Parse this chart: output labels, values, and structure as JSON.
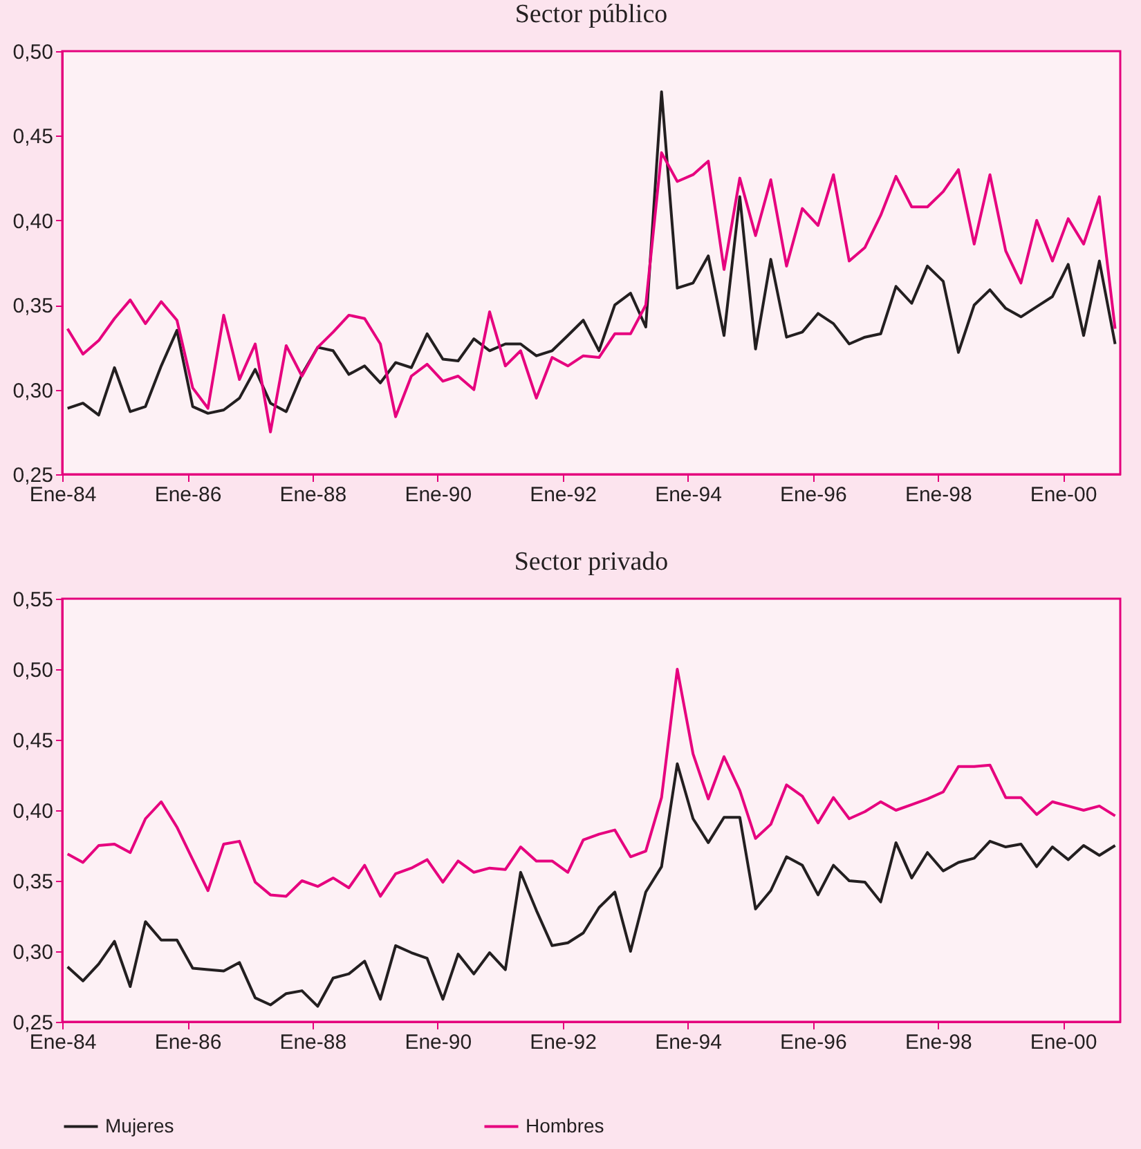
{
  "chart_data": [
    {
      "type": "line",
      "title": "Sector público",
      "x": [
        "1984-02",
        "1984-05",
        "1984-08",
        "1984-11",
        "1985-02",
        "1985-05",
        "1985-08",
        "1985-11",
        "1986-02",
        "1986-05",
        "1986-08",
        "1986-11",
        "1987-02",
        "1987-05",
        "1987-08",
        "1987-11",
        "1988-02",
        "1988-05",
        "1988-08",
        "1988-11",
        "1989-02",
        "1989-05",
        "1989-08",
        "1989-11",
        "1990-02",
        "1990-05",
        "1990-08",
        "1990-11",
        "1991-02",
        "1991-05",
        "1991-08",
        "1991-11",
        "1992-02",
        "1992-05",
        "1992-08",
        "1992-11",
        "1993-02",
        "1993-05",
        "1993-08",
        "1993-11",
        "1994-02",
        "1994-05",
        "1994-08",
        "1994-11",
        "1995-02",
        "1995-05",
        "1995-08",
        "1995-11",
        "1996-02",
        "1996-05",
        "1996-08",
        "1996-11",
        "1997-02",
        "1997-05",
        "1997-08",
        "1997-11",
        "1998-02",
        "1998-05",
        "1998-08",
        "1998-11",
        "1999-02",
        "1999-05",
        "1999-08",
        "1999-11",
        "2000-02",
        "2000-05",
        "2000-08",
        "2000-11"
      ],
      "series": [
        {
          "color": "#231f20",
          "values": [
            0.289,
            0.292,
            0.285,
            0.313,
            0.287,
            0.29,
            0.314,
            0.335,
            0.29,
            0.286,
            0.288,
            0.295,
            0.312,
            0.292,
            0.287,
            0.309,
            0.325,
            0.323,
            0.309,
            0.314,
            0.304,
            0.316,
            0.313,
            0.333,
            0.318,
            0.317,
            0.33,
            0.323,
            0.327,
            0.327,
            0.32,
            0.323,
            0.332,
            0.341,
            0.323,
            0.35,
            0.357,
            0.337,
            0.476,
            0.36,
            0.363,
            0.379,
            0.332,
            0.414,
            0.324,
            0.377,
            0.331,
            0.334,
            0.345,
            0.339,
            0.327,
            0.331,
            0.333,
            0.361,
            0.351,
            0.373,
            0.364,
            0.322,
            0.35,
            0.359,
            0.348,
            0.343,
            0.349,
            0.355,
            0.374,
            0.332,
            0.376,
            0.327
          ]
        },
        {
          "color": "#e6007e",
          "values": [
            0.336,
            0.321,
            0.329,
            0.342,
            0.353,
            0.339,
            0.352,
            0.341,
            0.301,
            0.289,
            0.344,
            0.306,
            0.327,
            0.275,
            0.326,
            0.308,
            0.325,
            0.334,
            0.344,
            0.342,
            0.327,
            0.284,
            0.308,
            0.315,
            0.305,
            0.308,
            0.3,
            0.346,
            0.314,
            0.323,
            0.295,
            0.319,
            0.314,
            0.32,
            0.319,
            0.333,
            0.333,
            0.35,
            0.44,
            0.423,
            0.427,
            0.435,
            0.371,
            0.425,
            0.391,
            0.424,
            0.373,
            0.407,
            0.397,
            0.427,
            0.376,
            0.384,
            0.403,
            0.426,
            0.408,
            0.408,
            0.417,
            0.43,
            0.386,
            0.427,
            0.382,
            0.363,
            0.4,
            0.376,
            0.401,
            0.386,
            0.414,
            0.336
          ]
        }
      ],
      "xlim": [
        "1984-01",
        "2000-12"
      ],
      "xticks": [
        {
          "value": "1984-01",
          "label": "Ene-84"
        },
        {
          "value": "1986-01",
          "label": "Ene-86"
        },
        {
          "value": "1988-01",
          "label": "Ene-88"
        },
        {
          "value": "1990-01",
          "label": "Ene-90"
        },
        {
          "value": "1992-01",
          "label": "Ene-92"
        },
        {
          "value": "1994-01",
          "label": "Ene-94"
        },
        {
          "value": "1996-01",
          "label": "Ene-96"
        },
        {
          "value": "1998-01",
          "label": "Ene-98"
        },
        {
          "value": "2000-01",
          "label": "Ene-00"
        }
      ],
      "ylim": [
        0.25,
        0.5
      ],
      "yticks": [
        {
          "value": 0.25,
          "label": "0,25"
        },
        {
          "value": 0.3,
          "label": "0,30"
        },
        {
          "value": 0.35,
          "label": "0,35"
        },
        {
          "value": 0.4,
          "label": "0,40"
        },
        {
          "value": 0.45,
          "label": "0,45"
        },
        {
          "value": 0.5,
          "label": "0,50"
        }
      ],
      "grid": false,
      "legend": false,
      "marker": "none",
      "line_style": "solid"
    },
    {
      "type": "line",
      "title": "Sector privado",
      "x": [
        "1984-02",
        "1984-05",
        "1984-08",
        "1984-11",
        "1985-02",
        "1985-05",
        "1985-08",
        "1985-11",
        "1986-02",
        "1986-05",
        "1986-08",
        "1986-11",
        "1987-02",
        "1987-05",
        "1987-08",
        "1987-11",
        "1988-02",
        "1988-05",
        "1988-08",
        "1988-11",
        "1989-02",
        "1989-05",
        "1989-08",
        "1989-11",
        "1990-02",
        "1990-05",
        "1990-08",
        "1990-11",
        "1991-02",
        "1991-05",
        "1991-08",
        "1991-11",
        "1992-02",
        "1992-05",
        "1992-08",
        "1992-11",
        "1993-02",
        "1993-05",
        "1993-08",
        "1993-11",
        "1994-02",
        "1994-05",
        "1994-08",
        "1994-11",
        "1995-02",
        "1995-05",
        "1995-08",
        "1995-11",
        "1996-02",
        "1996-05",
        "1996-08",
        "1996-11",
        "1997-02",
        "1997-05",
        "1997-08",
        "1997-11",
        "1998-02",
        "1998-05",
        "1998-08",
        "1998-11",
        "1999-02",
        "1999-05",
        "1999-08",
        "1999-11",
        "2000-02",
        "2000-05",
        "2000-08",
        "2000-11"
      ],
      "series": [
        {
          "name": "Mujeres",
          "color": "#231f20",
          "values": [
            0.289,
            0.279,
            0.291,
            0.307,
            0.275,
            0.321,
            0.308,
            0.308,
            0.288,
            0.287,
            0.286,
            0.292,
            0.267,
            0.262,
            0.27,
            0.272,
            0.261,
            0.281,
            0.284,
            0.293,
            0.266,
            0.304,
            0.299,
            0.295,
            0.266,
            0.298,
            0.284,
            0.299,
            0.287,
            0.356,
            0.329,
            0.304,
            0.306,
            0.313,
            0.331,
            0.342,
            0.3,
            0.342,
            0.36,
            0.433,
            0.394,
            0.377,
            0.395,
            0.395,
            0.33,
            0.343,
            0.367,
            0.361,
            0.34,
            0.361,
            0.35,
            0.349,
            0.335,
            0.377,
            0.352,
            0.37,
            0.357,
            0.363,
            0.366,
            0.378,
            0.374,
            0.376,
            0.36,
            0.374,
            0.365,
            0.375,
            0.368,
            0.375
          ]
        },
        {
          "name": "Hombres",
          "color": "#e6007e",
          "values": [
            0.369,
            0.363,
            0.375,
            0.376,
            0.37,
            0.394,
            0.406,
            0.388,
            0.365,
            0.343,
            0.376,
            0.378,
            0.349,
            0.34,
            0.339,
            0.35,
            0.346,
            0.352,
            0.345,
            0.361,
            0.339,
            0.355,
            0.359,
            0.365,
            0.349,
            0.364,
            0.356,
            0.359,
            0.358,
            0.374,
            0.364,
            0.364,
            0.356,
            0.379,
            0.383,
            0.386,
            0.367,
            0.371,
            0.409,
            0.5,
            0.44,
            0.408,
            0.438,
            0.414,
            0.38,
            0.39,
            0.418,
            0.41,
            0.391,
            0.409,
            0.394,
            0.399,
            0.406,
            0.4,
            0.404,
            0.408,
            0.413,
            0.431,
            0.431,
            0.432,
            0.409,
            0.409,
            0.397,
            0.406,
            0.403,
            0.4,
            0.403,
            0.396
          ]
        }
      ],
      "xlim": [
        "1984-01",
        "2000-12"
      ],
      "xticks": [
        {
          "value": "1984-01",
          "label": "Ene-84"
        },
        {
          "value": "1986-01",
          "label": "Ene-86"
        },
        {
          "value": "1988-01",
          "label": "Ene-88"
        },
        {
          "value": "1990-01",
          "label": "Ene-90"
        },
        {
          "value": "1992-01",
          "label": "Ene-92"
        },
        {
          "value": "1994-01",
          "label": "Ene-94"
        },
        {
          "value": "1996-01",
          "label": "Ene-96"
        },
        {
          "value": "1998-01",
          "label": "Ene-98"
        },
        {
          "value": "2000-01",
          "label": "Ene-00"
        }
      ],
      "ylim": [
        0.25,
        0.55
      ],
      "yticks": [
        {
          "value": 0.25,
          "label": "0,25"
        },
        {
          "value": 0.3,
          "label": "0,30"
        },
        {
          "value": 0.35,
          "label": "0,35"
        },
        {
          "value": 0.4,
          "label": "0,40"
        },
        {
          "value": 0.45,
          "label": "0,45"
        },
        {
          "value": 0.5,
          "label": "0,50"
        },
        {
          "value": 0.55,
          "label": "0,55"
        }
      ],
      "grid": false,
      "legend": "bottom",
      "marker": "none",
      "line_style": "solid"
    }
  ]
}
